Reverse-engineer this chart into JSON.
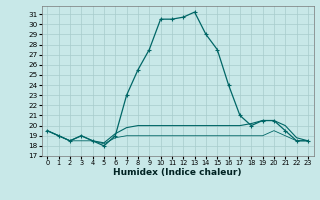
{
  "xlabel": "Humidex (Indice chaleur)",
  "xlim": [
    -0.5,
    23.5
  ],
  "ylim": [
    17,
    31.8
  ],
  "yticks": [
    17,
    18,
    19,
    20,
    21,
    22,
    23,
    24,
    25,
    26,
    27,
    28,
    29,
    30,
    31
  ],
  "xticks": [
    0,
    1,
    2,
    3,
    4,
    5,
    6,
    7,
    8,
    9,
    10,
    11,
    12,
    13,
    14,
    15,
    16,
    17,
    18,
    19,
    20,
    21,
    22,
    23
  ],
  "bg": "#c8e8e8",
  "grid_color": "#a8cccc",
  "lc": "#006666",
  "curve_main_x": [
    0,
    1,
    2,
    3,
    4,
    5,
    6,
    7,
    8,
    9,
    10,
    11,
    12,
    13,
    14,
    15,
    16,
    17,
    18,
    19,
    20,
    21,
    22,
    23
  ],
  "curve_main_y": [
    19.5,
    19.0,
    18.5,
    19.0,
    18.5,
    18.0,
    19.0,
    23.0,
    25.5,
    27.5,
    30.5,
    30.5,
    30.7,
    31.2,
    29.0,
    27.5,
    24.0,
    21.0,
    20.0,
    20.5,
    20.5,
    19.5,
    18.5,
    18.5
  ],
  "curve2_x": [
    0,
    1,
    2,
    3,
    4,
    5,
    6,
    7,
    8,
    9,
    10,
    11,
    12,
    13,
    14,
    15,
    16,
    17,
    18,
    19,
    20,
    21,
    22,
    23
  ],
  "curve2_y": [
    19.5,
    19.0,
    18.5,
    19.0,
    18.5,
    18.3,
    19.2,
    19.8,
    20.0,
    20.0,
    20.0,
    20.0,
    20.0,
    20.0,
    20.0,
    20.0,
    20.0,
    20.0,
    20.2,
    20.5,
    20.5,
    20.0,
    18.8,
    18.5
  ],
  "curve3_x": [
    0,
    1,
    2,
    3,
    4,
    5,
    6,
    7,
    8,
    9,
    10,
    11,
    12,
    13,
    14,
    15,
    16,
    17,
    18,
    19,
    20,
    21,
    22,
    23
  ],
  "curve3_y": [
    19.5,
    19.0,
    18.5,
    18.5,
    18.5,
    18.2,
    18.8,
    19.0,
    19.0,
    19.0,
    19.0,
    19.0,
    19.0,
    19.0,
    19.0,
    19.0,
    19.0,
    19.0,
    19.0,
    19.0,
    19.5,
    19.0,
    18.5,
    18.5
  ]
}
